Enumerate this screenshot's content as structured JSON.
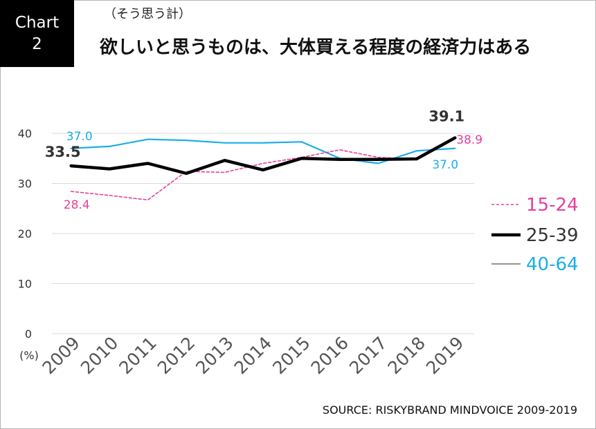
{
  "badge": {
    "line1": "Chart",
    "line2": "2"
  },
  "subtitle": "（そう思う計）",
  "title": "欲しいと思うものは、大体買える程度の経済力はある",
  "source": "SOURCE: RISKYBRAND MINDVOICE 2009-2019",
  "colors": {
    "15-24": "#e83e9c",
    "25-39": "#000000",
    "40-64": "#1aaee8",
    "grid": "#d9d9d9"
  },
  "chart_data": {
    "type": "line",
    "ylim": [
      0,
      40
    ],
    "yticks": [
      "0",
      "10",
      "20",
      "30",
      "40"
    ],
    "y_unit": "(%)",
    "grid": true,
    "legend_position": "right",
    "categories": [
      "2009",
      "2010",
      "2011",
      "2012",
      "2013",
      "2014",
      "2015",
      "2016",
      "2017",
      "2018",
      "2019"
    ],
    "series": [
      {
        "name": "15-24",
        "style": "dashed",
        "color": "#e83e9c",
        "values": [
          28.4,
          27.6,
          26.7,
          32.4,
          32.2,
          34.0,
          35.2,
          36.7,
          35.2,
          34.8,
          38.9
        ]
      },
      {
        "name": "25-39",
        "style": "bold",
        "color": "#000000",
        "values": [
          33.5,
          32.9,
          34.0,
          32.0,
          34.6,
          32.7,
          35.0,
          34.8,
          34.8,
          34.9,
          39.1
        ]
      },
      {
        "name": "40-64",
        "style": "solid",
        "color": "#1aaee8",
        "values": [
          37.0,
          37.4,
          38.8,
          38.6,
          38.1,
          38.1,
          38.3,
          35.0,
          34.0,
          36.5,
          37.0
        ]
      }
    ],
    "data_labels": [
      {
        "series": "40-64",
        "index": 0,
        "text": "37.0"
      },
      {
        "series": "25-39",
        "index": 0,
        "text": "33.5"
      },
      {
        "series": "15-24",
        "index": 0,
        "text": "28.4"
      },
      {
        "series": "25-39",
        "index": 10,
        "text": "39.1"
      },
      {
        "series": "15-24",
        "index": 10,
        "text": "38.9"
      },
      {
        "series": "40-64",
        "index": 10,
        "text": "37.0"
      }
    ]
  }
}
